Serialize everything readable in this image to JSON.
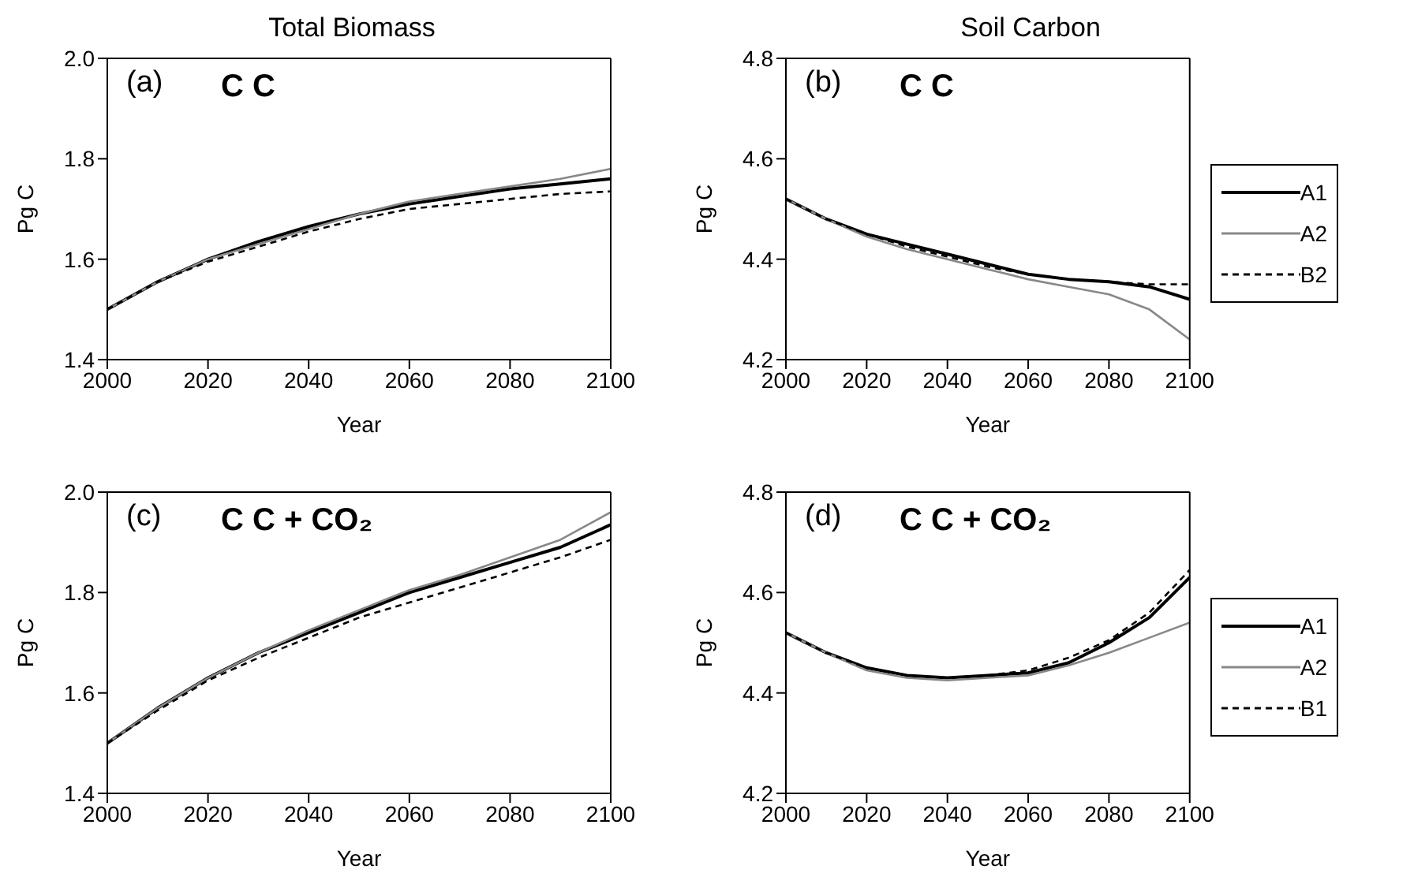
{
  "chart_data": [
    {
      "type": "line",
      "title": "Total Biomass",
      "xlabel": "Year",
      "ylabel": "Pg C",
      "annotations": [
        "(a)",
        "C C"
      ],
      "x": [
        2000,
        2010,
        2020,
        2030,
        2040,
        2050,
        2060,
        2070,
        2080,
        2090,
        2100
      ],
      "xlim": [
        2000,
        2100
      ],
      "xticks": [
        2000,
        2020,
        2040,
        2060,
        2080,
        2100
      ],
      "ylim": [
        1.4,
        2.0
      ],
      "yticks": [
        1.4,
        1.6,
        1.8,
        {
          "value": 2,
          "label": "2.0"
        }
      ],
      "grid": false,
      "legend": false,
      "series": [
        {
          "color": "#000000",
          "values": [
            1.5,
            1.555,
            1.6,
            1.635,
            1.665,
            1.69,
            1.71,
            1.725,
            1.74,
            1.75,
            1.76
          ]
        },
        {
          "color": "#888888",
          "values": [
            1.5,
            1.555,
            1.6,
            1.63,
            1.66,
            1.69,
            1.715,
            1.73,
            1.745,
            1.76,
            1.78
          ]
        },
        {
          "color": "#000000",
          "line_style": "dashed",
          "values": [
            1.5,
            1.555,
            1.595,
            1.625,
            1.655,
            1.68,
            1.7,
            1.71,
            1.72,
            1.73,
            1.735
          ]
        }
      ]
    },
    {
      "type": "line",
      "title": "Soil Carbon",
      "xlabel": "Year",
      "ylabel": "Pg C",
      "annotations": [
        "(b)",
        "C C"
      ],
      "x": [
        2000,
        2010,
        2020,
        2030,
        2040,
        2050,
        2060,
        2070,
        2080,
        2090,
        2100
      ],
      "xlim": [
        2000,
        2100
      ],
      "xticks": [
        2000,
        2020,
        2040,
        2060,
        2080,
        2100
      ],
      "ylim": [
        4.2,
        4.8
      ],
      "yticks": [
        4.2,
        4.4,
        4.6,
        4.8
      ],
      "grid": false,
      "legend": "right",
      "series": [
        {
          "name": "A1",
          "color": "#000000",
          "values": [
            4.52,
            4.48,
            4.45,
            4.43,
            4.41,
            4.39,
            4.37,
            4.36,
            4.355,
            4.345,
            4.32
          ]
        },
        {
          "name": "A2",
          "color": "#888888",
          "values": [
            4.52,
            4.48,
            4.445,
            4.42,
            4.4,
            4.38,
            4.36,
            4.345,
            4.33,
            4.3,
            4.24
          ]
        },
        {
          "name": "B2",
          "color": "#000000",
          "line_style": "dashed",
          "values": [
            4.52,
            4.48,
            4.45,
            4.425,
            4.405,
            4.385,
            4.37,
            4.36,
            4.355,
            4.35,
            4.35
          ]
        }
      ]
    },
    {
      "type": "line",
      "xlabel": "Year",
      "ylabel": "Pg C",
      "annotations": [
        "(c)",
        "C C + CO₂"
      ],
      "x": [
        2000,
        2010,
        2020,
        2030,
        2040,
        2050,
        2060,
        2070,
        2080,
        2090,
        2100
      ],
      "xlim": [
        2000,
        2100
      ],
      "xticks": [
        2000,
        2020,
        2040,
        2060,
        2080,
        2100
      ],
      "ylim": [
        1.4,
        2.0
      ],
      "yticks": [
        1.4,
        1.6,
        1.8,
        {
          "value": 2,
          "label": "2.0"
        }
      ],
      "grid": false,
      "legend": false,
      "series": [
        {
          "color": "#000000",
          "values": [
            1.5,
            1.57,
            1.63,
            1.68,
            1.72,
            1.76,
            1.8,
            1.83,
            1.86,
            1.89,
            1.935
          ]
        },
        {
          "color": "#888888",
          "values": [
            1.5,
            1.57,
            1.63,
            1.68,
            1.725,
            1.765,
            1.805,
            1.835,
            1.87,
            1.905,
            1.96
          ]
        },
        {
          "color": "#000000",
          "line_style": "dashed",
          "values": [
            1.5,
            1.565,
            1.625,
            1.67,
            1.71,
            1.75,
            1.78,
            1.81,
            1.84,
            1.87,
            1.905
          ]
        }
      ]
    },
    {
      "type": "line",
      "xlabel": "Year",
      "ylabel": "Pg C",
      "annotations": [
        "(d)",
        "C C + CO₂"
      ],
      "x": [
        2000,
        2010,
        2020,
        2030,
        2040,
        2050,
        2060,
        2070,
        2080,
        2090,
        2100
      ],
      "xlim": [
        2000,
        2100
      ],
      "xticks": [
        2000,
        2020,
        2040,
        2060,
        2080,
        2100
      ],
      "ylim": [
        4.2,
        4.8
      ],
      "yticks": [
        4.2,
        4.4,
        4.6,
        4.8
      ],
      "grid": false,
      "legend": "right",
      "series": [
        {
          "name": "A1",
          "color": "#000000",
          "values": [
            4.52,
            4.48,
            4.45,
            4.435,
            4.43,
            4.435,
            4.44,
            4.46,
            4.5,
            4.55,
            4.63
          ]
        },
        {
          "name": "A2",
          "color": "#888888",
          "values": [
            4.52,
            4.48,
            4.445,
            4.43,
            4.425,
            4.43,
            4.435,
            4.455,
            4.48,
            4.51,
            4.54
          ]
        },
        {
          "name": "B1",
          "color": "#000000",
          "line_style": "dashed",
          "values": [
            4.52,
            4.48,
            4.45,
            4.435,
            4.43,
            4.435,
            4.445,
            4.47,
            4.505,
            4.56,
            4.645
          ]
        }
      ]
    }
  ]
}
